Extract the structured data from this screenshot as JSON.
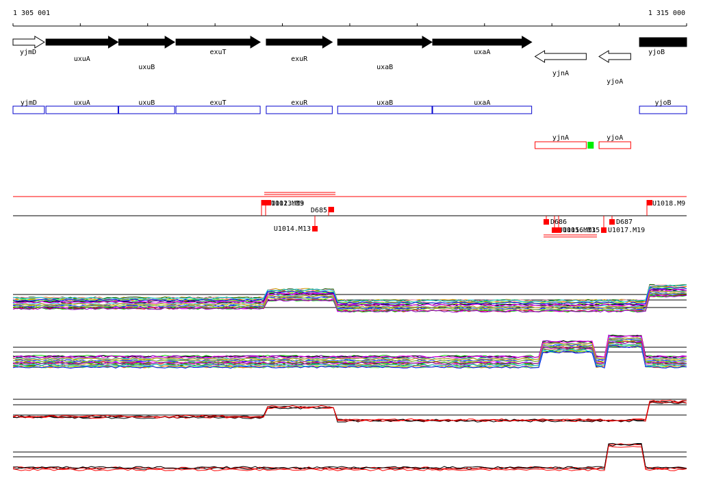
{
  "ruler": {
    "start_label": "1 305 001",
    "end_label": "1 315 000"
  },
  "genes": [
    {
      "name": "yjmD",
      "start": 1305001,
      "end": 1305467,
      "strand": "+",
      "filled": false,
      "label_row": 0
    },
    {
      "name": "uxuA",
      "start": 1305490,
      "end": 1306560,
      "strand": "+",
      "filled": true,
      "label_row": 1
    },
    {
      "name": "uxuB",
      "start": 1306570,
      "end": 1307400,
      "strand": "+",
      "filled": true,
      "label_row": 2
    },
    {
      "name": "exuT",
      "start": 1307420,
      "end": 1308670,
      "strand": "+",
      "filled": true,
      "label_row": 0
    },
    {
      "name": "exuR",
      "start": 1308760,
      "end": 1309740,
      "strand": "+",
      "filled": true,
      "label_row": 1
    },
    {
      "name": "uxaB",
      "start": 1309820,
      "end": 1311220,
      "strand": "+",
      "filled": true,
      "label_row": 2
    },
    {
      "name": "uxaA",
      "start": 1311230,
      "end": 1312700,
      "strand": "+",
      "filled": true,
      "label_row": 0
    },
    {
      "name": "yjnA",
      "start": 1312750,
      "end": 1313510,
      "strand": "-",
      "filled": false,
      "label_row": 1
    },
    {
      "name": "yjoA",
      "start": 1313700,
      "end": 1314170,
      "strand": "-",
      "filled": false,
      "label_row": 2
    },
    {
      "name": "yjoB",
      "start": 1314300,
      "end": 1314900,
      "strand": "+",
      "filled": true,
      "label_row": 0
    }
  ],
  "blue_track": [
    "yjmD",
    "uxuA",
    "uxuB",
    "exuT",
    "exuR",
    "uxaB",
    "uxaA",
    "yjoB"
  ],
  "red_track": [
    "yjnA",
    "yjoA"
  ],
  "green_marker": {
    "position": 1313570
  },
  "features_top": [
    {
      "label": "U1012.M13",
      "position": 1308630
    },
    {
      "label": "U1013.M9",
      "position": 1308670
    },
    {
      "label": "D685",
      "position": 1309740
    },
    {
      "label": "U1018.M9",
      "position": 1314270
    }
  ],
  "features_bottom": [
    {
      "label": "U1014.M13",
      "position": 1309470
    },
    {
      "label": "D686",
      "position": 1312760
    },
    {
      "label": "U1015.M13",
      "position": 1313220
    },
    {
      "label": "U1016.M15",
      "position": 1313400
    },
    {
      "label": "U1017.M19",
      "position": 1313930
    },
    {
      "label": "D687",
      "position": 1313650
    }
  ],
  "colors": {
    "gene_outline": "#000000",
    "blue_track": "#0000cc",
    "red_feature": "#ff0000",
    "green_marker": "#00ee00",
    "trace_red": "#ff0000",
    "trace_black": "#000000"
  }
}
